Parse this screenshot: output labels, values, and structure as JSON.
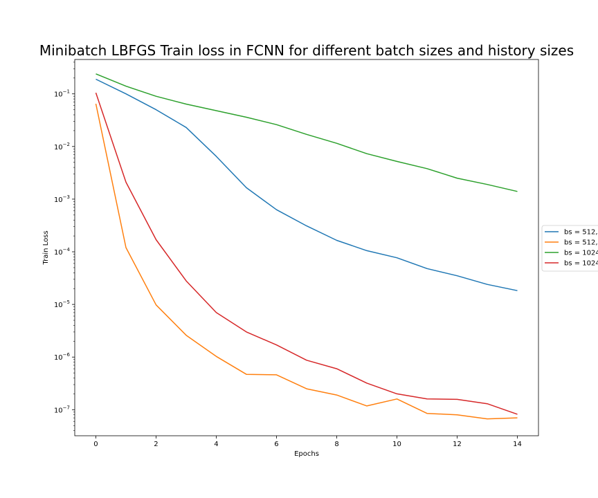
{
  "chart_data": {
    "type": "line",
    "title": "Minibatch LBFGS Train loss in FCNN for different batch sizes and history sizes",
    "xlabel": "Epochs",
    "ylabel": "Train Loss",
    "xlim": [
      -0.7,
      14.7
    ],
    "ylim": [
      3.2e-08,
      0.45
    ],
    "yscale": "log",
    "grid": false,
    "legend_position": "right, outside plot (cut off)",
    "x": [
      0,
      1,
      2,
      3,
      4,
      5,
      6,
      7,
      8,
      9,
      10,
      11,
      12,
      13,
      14
    ],
    "x_ticks": [
      0,
      2,
      4,
      6,
      8,
      10,
      12,
      14
    ],
    "y_tick_exponents": [
      -7,
      -6,
      -5,
      -4,
      -3,
      -2,
      -1
    ],
    "series": [
      {
        "name": "bs = 512,",
        "color": "#1f77b4",
        "values": [
          0.19,
          0.1,
          0.05,
          0.023,
          0.0065,
          0.00165,
          0.00063,
          0.00031,
          0.000165,
          0.000105,
          7.7e-05,
          4.8e-05,
          3.5e-05,
          2.4e-05,
          1.83e-05
        ]
      },
      {
        "name": "bs = 512,",
        "color": "#ff7f0e",
        "values": [
          0.065,
          0.00012,
          9.8e-06,
          2.6e-06,
          1.03e-06,
          4.7e-07,
          4.6e-07,
          2.5e-07,
          1.9e-07,
          1.18e-07,
          1.6e-07,
          8.5e-08,
          8e-08,
          6.7e-08,
          7e-08
        ]
      },
      {
        "name": "bs = 1024",
        "color": "#2ca02c",
        "values": [
          0.24,
          0.14,
          0.09,
          0.064,
          0.048,
          0.036,
          0.026,
          0.017,
          0.0115,
          0.0073,
          0.0052,
          0.0038,
          0.0025,
          0.0019,
          0.0014
        ]
      },
      {
        "name": "bs = 1024",
        "color": "#d62728",
        "values": [
          0.105,
          0.0021,
          0.00017,
          2.8e-05,
          7e-06,
          3e-06,
          1.7e-06,
          8.7e-07,
          6e-07,
          3.2e-07,
          2e-07,
          1.6e-07,
          1.57e-07,
          1.3e-07,
          8.2e-08
        ]
      }
    ]
  }
}
